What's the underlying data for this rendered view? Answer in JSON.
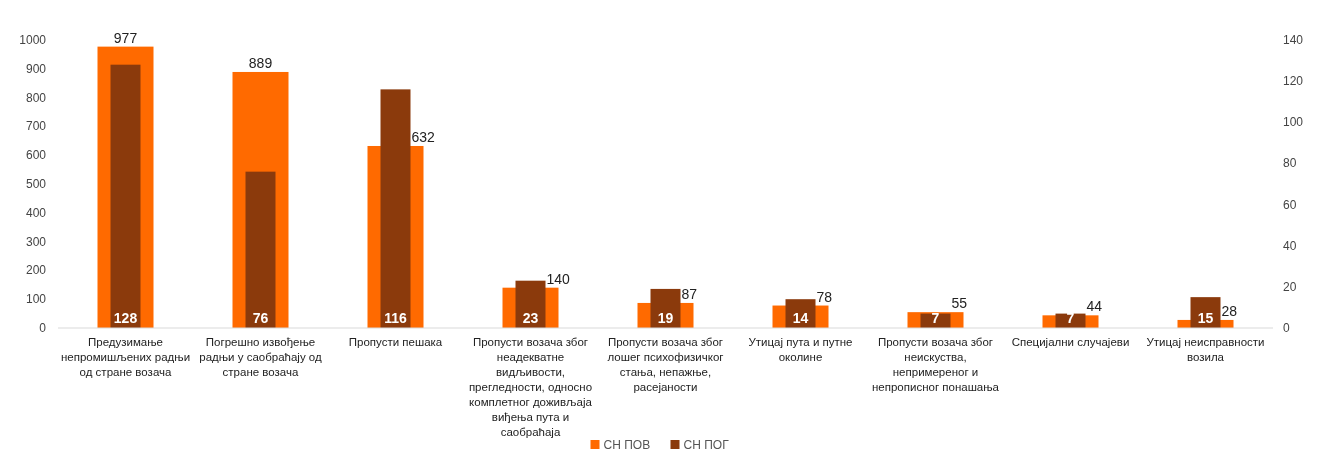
{
  "chart_data": {
    "type": "bar",
    "categories": [
      "Предузимање непромишљених радњи од стране возача",
      "Погрешно извођење радњи у саобраћају од стране возача",
      "Пропусти пешака",
      "Пропусти возача због неадекватне видљивости, прегледности, односно комплетног доживљаја виђења пута и саобраћаја",
      "Пропусти возача због лошег психофизичког стања, непажње, расејаности",
      "Утицај пута и путне околине",
      "Пропусти возача због неискуства, непримереног и непрописног понашања",
      "Специјални случајеви",
      "Утицај неисправности возила"
    ],
    "series": [
      {
        "name": "СН ПОВ",
        "color": "#ff6a00",
        "values": [
          977,
          889,
          632,
          140,
          87,
          78,
          55,
          44,
          28
        ]
      },
      {
        "name": "СН ПОГ",
        "color": "#8b3a0c",
        "axis": "y2",
        "values": [
          128,
          76,
          116,
          23,
          19,
          14,
          7,
          7,
          15
        ]
      }
    ],
    "ylim": [
      0,
      1000
    ],
    "yticks": [
      0,
      100,
      200,
      300,
      400,
      500,
      600,
      700,
      800,
      900,
      1000
    ],
    "y2lim": [
      0,
      140
    ],
    "y2ticks": [
      0,
      20,
      40,
      60,
      80,
      100,
      120,
      140
    ],
    "data_labels": true,
    "legend": "bottom",
    "grid": false
  }
}
